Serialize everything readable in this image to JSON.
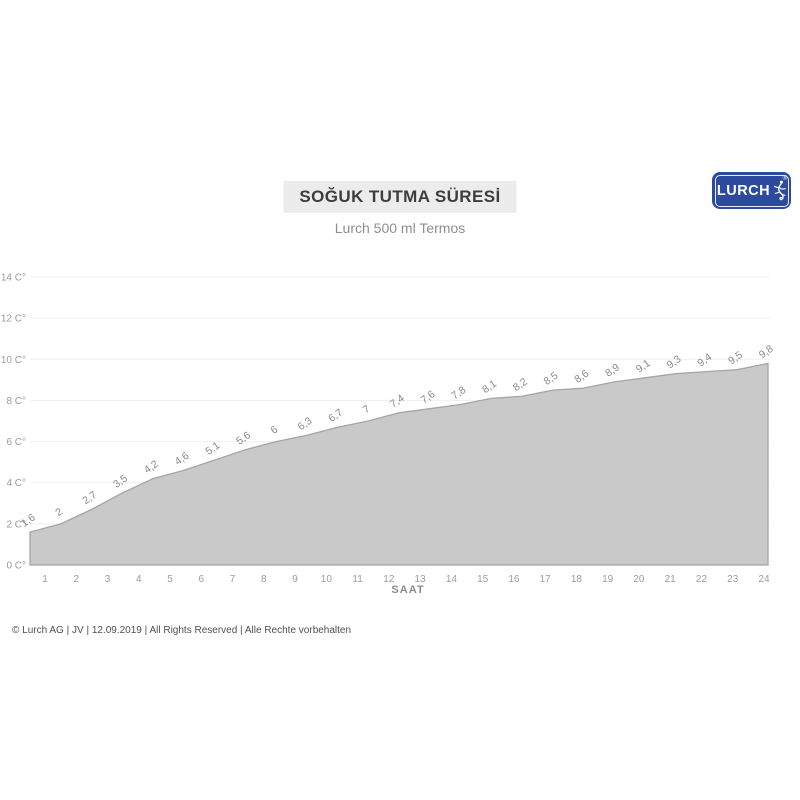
{
  "logo": {
    "text": "LURCH",
    "registered_mark": "®",
    "bg_color": "#2c4a9e"
  },
  "footer": {
    "text": "© Lurch AG | JV | 12.09.2019 | All Rights Reserved | Alle Rechte vorbehalten"
  },
  "chart_data": {
    "type": "area",
    "title": "SOĞUK TUTMA SÜRESİ",
    "subtitle": "Lurch 500 ml Termos",
    "xlabel": "SAAT",
    "ylabel": "",
    "x_tick_labels": [
      "1",
      "2",
      "3",
      "4",
      "5",
      "6",
      "7",
      "8",
      "9",
      "10",
      "11",
      "12",
      "13",
      "14",
      "15",
      "16",
      "17",
      "18",
      "19",
      "20",
      "21",
      "22",
      "23",
      "24"
    ],
    "values": [
      1.6,
      2,
      2.7,
      3.5,
      4.2,
      4.6,
      5.1,
      5.6,
      6,
      6.3,
      6.7,
      7,
      7.4,
      7.6,
      7.8,
      8.1,
      8.2,
      8.5,
      8.6,
      8.9,
      9.1,
      9.3,
      9.4,
      9.5,
      9.8
    ],
    "value_labels": [
      "1,6",
      "2",
      "2,7",
      "3,5",
      "4,2",
      "4,6",
      "5,1",
      "5,6",
      "6",
      "6,3",
      "6,7",
      "7",
      "7,4",
      "7,6",
      "7,8",
      "8,1",
      "8,2",
      "8,5",
      "8,6",
      "8,9",
      "9,1",
      "9,3",
      "9,4",
      "9,5",
      "9,8"
    ],
    "y_ticks": [
      {
        "value": 0,
        "label": "0 C°"
      },
      {
        "value": 2,
        "label": "2 C°"
      },
      {
        "value": 4,
        "label": "4 C°"
      },
      {
        "value": 6,
        "label": "6 C°"
      },
      {
        "value": 8,
        "label": "8 C°"
      },
      {
        "value": 10,
        "label": "10 C°"
      },
      {
        "value": 12,
        "label": "12 C°"
      },
      {
        "value": 14,
        "label": "14 C°"
      }
    ],
    "ylim": [
      0,
      14
    ],
    "grid": true,
    "legend": false,
    "colors": {
      "area_fill": "#c9c9c9",
      "area_stroke": "#a5a5a5",
      "gridline": "#efefef",
      "tick_text": "#9b9b9b",
      "data_label": "#8a8a8a"
    }
  }
}
